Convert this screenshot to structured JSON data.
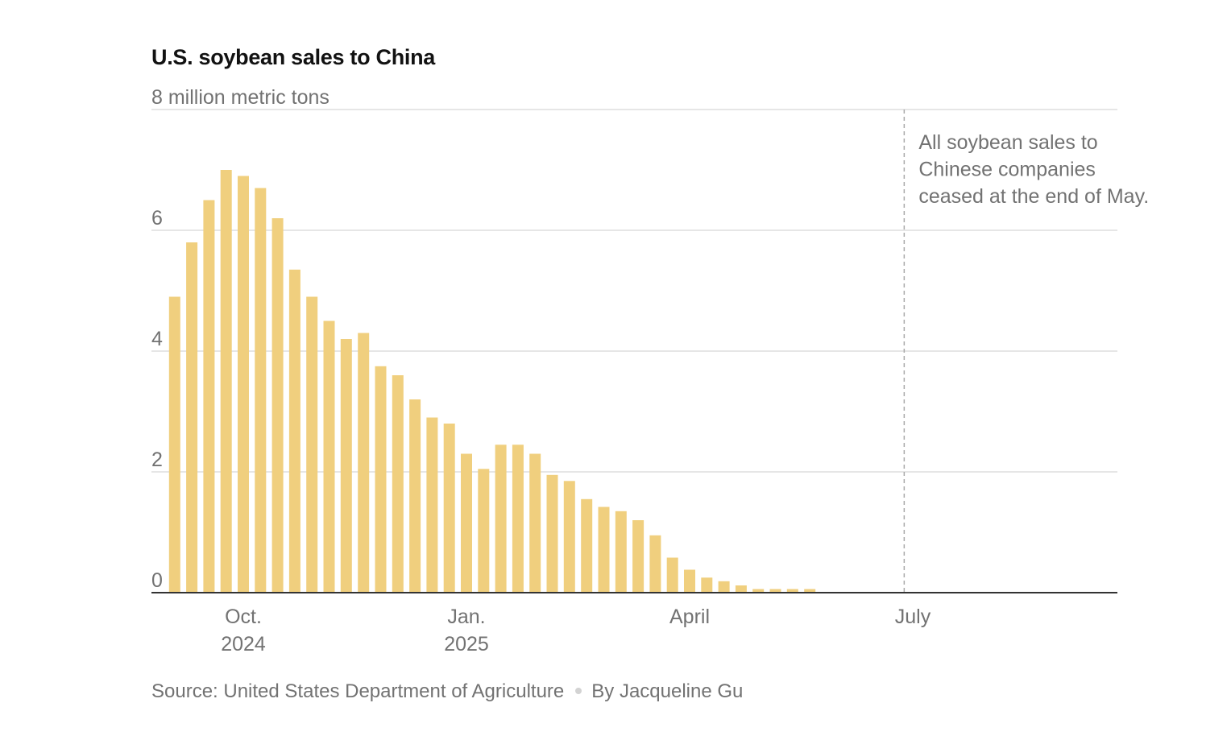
{
  "title": "U.S. soybean sales to China",
  "source": {
    "text": "Source: United States Department of Agriculture",
    "byline": "By Jacqueline Gu"
  },
  "colors": {
    "bar": "#f0cf7e",
    "grid": "#dddddd",
    "axis": "#333333",
    "text": "#727272"
  },
  "chart_data": {
    "type": "bar",
    "title": "U.S. soybean sales to China",
    "ylabel": "million metric tons",
    "ylim": [
      0,
      8
    ],
    "yticks": [
      {
        "value": 8,
        "label": "8 million metric tons"
      },
      {
        "value": 6,
        "label": "6"
      },
      {
        "value": 4,
        "label": "4"
      },
      {
        "value": 2,
        "label": "2"
      },
      {
        "value": 0,
        "label": "0"
      }
    ],
    "x_unit": "weeks",
    "x_range": [
      -4,
      51
    ],
    "xticks": [
      {
        "week": 0,
        "label": [
          "Oct.",
          "2024"
        ]
      },
      {
        "week": 13,
        "label": [
          "Jan.",
          "2025"
        ]
      },
      {
        "week": 26,
        "label": [
          "April"
        ]
      },
      {
        "week": 39,
        "label": [
          "July"
        ]
      }
    ],
    "series": [
      {
        "name": "U.S. soybean sales to China",
        "start_week": -4,
        "values": [
          4.9,
          5.8,
          6.5,
          7.0,
          6.9,
          6.7,
          6.2,
          5.35,
          4.9,
          4.5,
          4.2,
          4.3,
          3.75,
          3.6,
          3.2,
          2.9,
          2.8,
          2.3,
          2.05,
          2.45,
          2.45,
          2.3,
          1.95,
          1.85,
          1.55,
          1.42,
          1.35,
          1.2,
          0.95,
          0.58,
          0.38,
          0.25,
          0.19,
          0.12,
          0.06,
          0.06,
          0.06,
          0.06
        ]
      }
    ],
    "annotation": {
      "week": 38.5,
      "lines": [
        "All soybean sales to",
        "Chinese companies",
        "ceased at the end of May."
      ]
    }
  }
}
